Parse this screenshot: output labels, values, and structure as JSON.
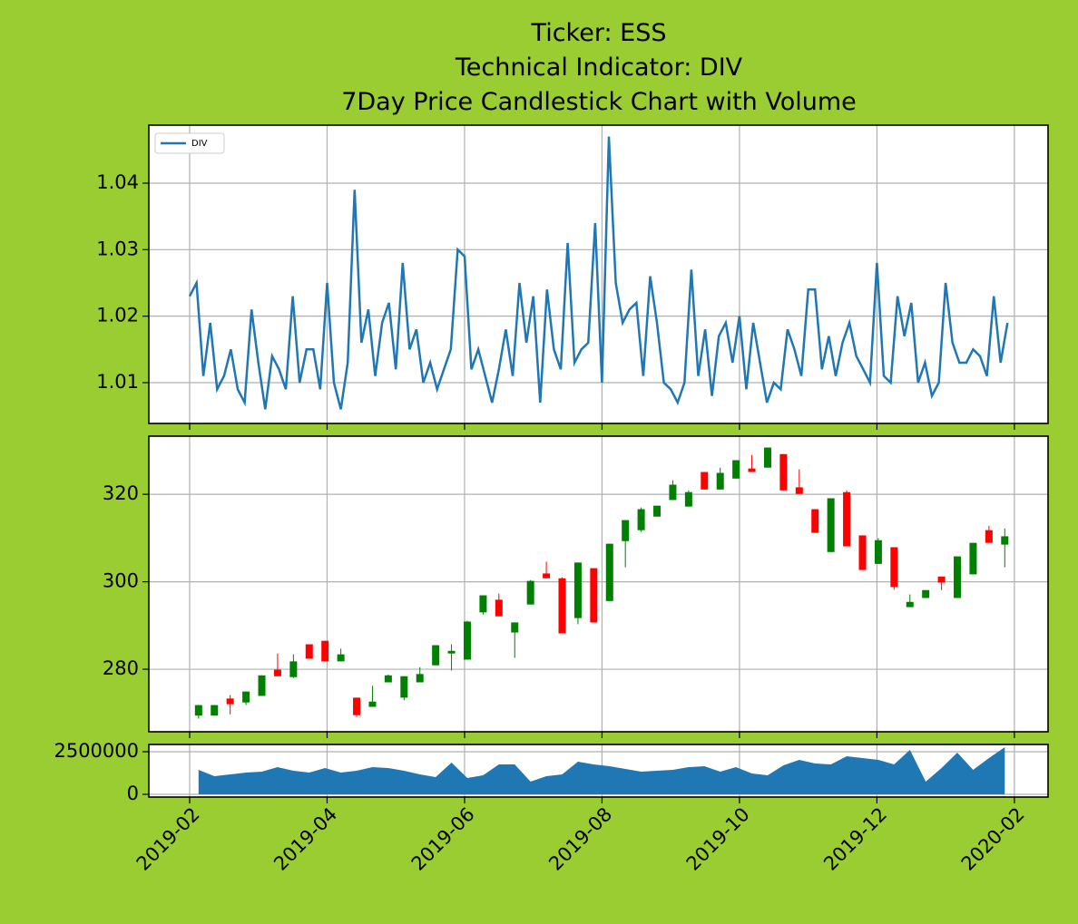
{
  "chart_data": [
    {
      "type": "line",
      "title": [
        "Ticker: ESS",
        "Technical Indicator: DIV",
        "7Day Price Candlestick Chart with Volume"
      ],
      "ylim": [
        1.00386,
        1.04873
      ],
      "yticks": [
        1.01,
        1.02,
        1.03,
        1.04
      ],
      "grid": true,
      "legend": "upper left",
      "series": [
        {
          "name": "DIV",
          "color": "#1f77b4",
          "x": [
            1.0,
            1.1,
            1.2,
            1.3,
            1.4,
            1.5,
            1.6,
            1.7,
            1.8,
            1.9,
            2.0,
            2.1,
            2.2,
            2.3,
            2.4,
            2.5,
            2.6,
            2.7,
            2.8,
            2.9,
            3.0,
            3.1,
            3.2,
            3.3,
            3.4,
            3.5,
            3.6,
            3.7,
            3.8,
            3.9,
            4.0,
            4.1,
            4.2,
            4.3,
            4.4,
            4.5,
            4.6,
            4.7,
            4.8,
            4.9,
            5.0,
            5.1,
            5.2,
            5.3,
            5.4,
            5.5,
            5.6,
            5.7,
            5.8,
            5.9,
            6.0,
            6.1,
            6.2,
            6.3,
            6.4,
            6.5,
            6.6,
            6.7,
            6.8,
            6.9,
            7.0,
            7.1,
            7.2,
            7.3,
            7.4,
            7.5,
            7.6,
            7.7,
            7.8,
            7.9,
            8.0,
            8.1,
            8.2,
            8.3,
            8.4,
            8.5,
            8.6,
            8.7,
            8.8,
            8.9,
            9.0,
            9.1,
            9.2,
            9.3,
            9.4,
            9.5,
            9.6,
            9.7,
            9.8,
            9.9,
            10.0,
            10.1,
            10.2,
            10.3,
            10.4,
            10.5,
            10.6,
            10.7,
            10.8,
            10.9,
            11.0,
            11.1,
            11.2,
            11.3,
            11.4,
            11.5,
            11.6,
            11.7,
            11.8,
            11.9,
            12.0,
            12.1,
            12.2,
            12.3,
            12.4,
            12.5,
            12.6,
            12.7,
            12.8,
            12.9
          ],
          "values": [
            1.023,
            1.025,
            1.011,
            1.019,
            1.009,
            1.011,
            1.015,
            1.009,
            1.007,
            1.021,
            1.013,
            1.006,
            1.014,
            1.012,
            1.009,
            1.023,
            1.01,
            1.015,
            1.015,
            1.009,
            1.025,
            1.01,
            1.006,
            1.013,
            1.039,
            1.016,
            1.021,
            1.011,
            1.019,
            1.022,
            1.012,
            1.028,
            1.015,
            1.018,
            1.01,
            1.013,
            1.009,
            1.012,
            1.015,
            1.03,
            1.029,
            1.012,
            1.015,
            1.011,
            1.007,
            1.012,
            1.018,
            1.011,
            1.025,
            1.016,
            1.023,
            1.007,
            1.024,
            1.015,
            1.012,
            1.031,
            1.013,
            1.015,
            1.016,
            1.034,
            1.01,
            1.047,
            1.025,
            1.019,
            1.021,
            1.022,
            1.011,
            1.026,
            1.019,
            1.01,
            1.009,
            1.007,
            1.01,
            1.027,
            1.011,
            1.018,
            1.008,
            1.017,
            1.019,
            1.013,
            1.02,
            1.009,
            1.019,
            1.013,
            1.007,
            1.01,
            1.009,
            1.018,
            1.015,
            1.011,
            1.024,
            1.024,
            1.012,
            1.017,
            1.011,
            1.016,
            1.019,
            1.014,
            1.012,
            1.01,
            1.028,
            1.011,
            1.01,
            1.023,
            1.017,
            1.022,
            1.01,
            1.013,
            1.008,
            1.01,
            1.025,
            1.016,
            1.013,
            1.013,
            1.015,
            1.014,
            1.011,
            1.023,
            1.013,
            1.019
          ]
        }
      ]
    },
    {
      "type": "candlestick",
      "ylim": [
        265.7,
        333.3
      ],
      "yticks": [
        280,
        300,
        320
      ],
      "grid": true,
      "colorup": "#008000",
      "colordown": "#ff0000",
      "x": [
        1.13,
        1.36,
        1.59,
        1.82,
        2.05,
        2.28,
        2.51,
        2.74,
        2.97,
        3.2,
        3.43,
        3.66,
        3.89,
        4.12,
        4.35,
        4.58,
        4.81,
        5.04,
        5.27,
        5.5,
        5.73,
        5.96,
        6.19,
        6.42,
        6.65,
        6.88,
        7.11,
        7.34,
        7.57,
        7.8,
        8.03,
        8.26,
        8.49,
        8.72,
        8.95,
        9.18,
        9.41,
        9.64,
        9.87,
        10.1,
        10.33,
        10.56,
        10.79,
        11.02,
        11.25,
        11.48,
        11.71,
        11.94,
        12.17,
        12.4,
        12.63,
        12.86
      ],
      "open": [
        269.4,
        269.4,
        273.3,
        272.4,
        273.9,
        279.9,
        278.2,
        285.7,
        286.5,
        281.8,
        273.5,
        271.4,
        277.0,
        273.5,
        277.0,
        280.9,
        283.6,
        282.2,
        293.0,
        295.9,
        288.4,
        294.8,
        301.9,
        300.8,
        291.7,
        303.1,
        295.6,
        309.3,
        311.8,
        314.9,
        318.7,
        317.2,
        325.1,
        321.1,
        323.6,
        325.9,
        326.1,
        329.2,
        321.6,
        316.6,
        306.8,
        320.5,
        310.6,
        304.1,
        307.9,
        294.2,
        296.3,
        301.2,
        296.3,
        301.7,
        311.8,
        308.5
      ],
      "high": [
        271.8,
        271.8,
        274.1,
        274.9,
        278.6,
        283.6,
        283.4,
        285.7,
        286.5,
        284.7,
        273.5,
        276.2,
        278.8,
        278.4,
        280.5,
        285.5,
        285.7,
        291.1,
        296.9,
        297.3,
        290.7,
        300.4,
        304.6,
        301.0,
        304.4,
        303.1,
        308.7,
        314.1,
        317.0,
        317.4,
        323.2,
        320.9,
        325.1,
        326.1,
        327.8,
        329.0,
        330.7,
        329.2,
        325.7,
        316.6,
        319.1,
        320.9,
        310.6,
        310.0,
        307.9,
        297.1,
        298.1,
        301.2,
        305.8,
        308.9,
        312.8,
        312.2
      ],
      "low": [
        268.7,
        269.4,
        269.7,
        271.8,
        273.9,
        278.4,
        278.0,
        282.4,
        281.8,
        281.8,
        269.1,
        271.4,
        277.0,
        272.9,
        277.0,
        280.9,
        279.7,
        282.2,
        292.5,
        292.1,
        282.6,
        294.8,
        300.8,
        288.2,
        290.3,
        290.7,
        295.6,
        303.3,
        311.4,
        314.9,
        318.7,
        317.2,
        321.1,
        321.1,
        323.6,
        325.1,
        326.1,
        320.9,
        320.1,
        311.2,
        306.8,
        308.1,
        302.7,
        304.1,
        298.2,
        294.2,
        296.3,
        298.1,
        296.3,
        301.7,
        308.9,
        303.3
      ],
      "close": [
        271.8,
        271.8,
        272.0,
        274.9,
        278.6,
        278.4,
        281.8,
        282.4,
        281.8,
        283.4,
        269.5,
        272.6,
        278.6,
        278.4,
        278.9,
        285.5,
        284.2,
        290.9,
        296.9,
        292.1,
        290.7,
        300.2,
        300.8,
        288.2,
        304.4,
        290.7,
        308.7,
        314.1,
        316.6,
        317.4,
        322.2,
        320.5,
        321.1,
        324.9,
        327.8,
        325.1,
        330.7,
        320.9,
        320.1,
        311.2,
        319.1,
        308.1,
        302.7,
        309.5,
        298.8,
        295.4,
        298.1,
        299.8,
        305.8,
        308.9,
        308.9,
        310.4
      ]
    },
    {
      "type": "area",
      "ylim": [
        -160000,
        2925000
      ],
      "yticks": [
        0,
        2500000
      ],
      "grid": true,
      "color": "#1f77b4",
      "xlim": [
        0.406,
        13.49
      ],
      "xticks": [
        {
          "value": 1,
          "label": "2019-02"
        },
        {
          "value": 3,
          "label": "2019-04"
        },
        {
          "value": 5,
          "label": "2019-06"
        },
        {
          "value": 7,
          "label": "2019-08"
        },
        {
          "value": 9,
          "label": "2019-10"
        },
        {
          "value": 11,
          "label": "2019-12"
        },
        {
          "value": 13,
          "label": "2020-02"
        }
      ],
      "x": [
        1.13,
        1.36,
        1.59,
        1.82,
        2.05,
        2.28,
        2.51,
        2.74,
        2.97,
        3.2,
        3.43,
        3.66,
        3.89,
        4.12,
        4.35,
        4.58,
        4.81,
        5.04,
        5.27,
        5.5,
        5.73,
        5.96,
        6.19,
        6.42,
        6.65,
        6.88,
        7.11,
        7.34,
        7.57,
        7.8,
        8.03,
        8.26,
        8.49,
        8.72,
        8.95,
        9.18,
        9.41,
        9.64,
        9.87,
        10.1,
        10.33,
        10.56,
        10.79,
        11.02,
        11.25,
        11.48,
        11.71,
        11.94,
        12.17,
        12.4,
        12.63,
        12.86
      ],
      "values": [
        1436000,
        1064000,
        1170000,
        1277000,
        1330000,
        1596000,
        1383000,
        1277000,
        1543000,
        1277000,
        1383000,
        1596000,
        1543000,
        1383000,
        1170000,
        1011000,
        1862000,
        957000,
        1117000,
        1755000,
        1755000,
        745000,
        1064000,
        1170000,
        1915000,
        1755000,
        1649000,
        1489000,
        1330000,
        1383000,
        1436000,
        1596000,
        1649000,
        1330000,
        1596000,
        1223000,
        1117000,
        1702000,
        2021000,
        1809000,
        1755000,
        2234000,
        2128000,
        2021000,
        1755000,
        2606000,
        745000,
        1543000,
        2447000,
        1436000,
        2128000,
        2766000
      ]
    }
  ]
}
